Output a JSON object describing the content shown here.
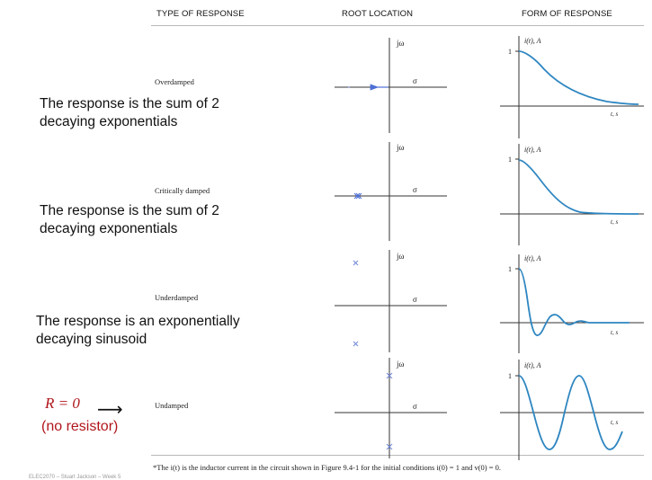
{
  "headers": {
    "type": "TYPE OF RESPONSE",
    "root": "ROOT LOCATION",
    "form": "FORM OF RESPONSE"
  },
  "axis_labels": {
    "imag": "jω",
    "real": "σ",
    "current": "i(t), A",
    "time": "t, s",
    "one": "1"
  },
  "rows": [
    {
      "type": "Overdamped",
      "caption_line1": "The response is the sum of 2",
      "caption_line2": "decaying exponentials",
      "root_markers": [
        "arrow-root",
        "faint-root"
      ],
      "response_shape": "slow-exponential-decay"
    },
    {
      "type": "Critically damped",
      "caption_line1": "The response is the sum of 2",
      "caption_line2": "decaying exponentials",
      "root_markers": [
        "double-root"
      ],
      "response_shape": "fast-exponential-decay"
    },
    {
      "type": "Underdamped",
      "caption_line1": "The response is an exponentially",
      "caption_line2": "decaying sinusoid",
      "root_markers": [
        "complex-pair-left-half-plane"
      ],
      "response_shape": "damped-oscillation"
    },
    {
      "type": "Undamped",
      "r_note": "R = 0",
      "r_note2": "(no resistor)",
      "root_markers": [
        "imaginary-axis-pair"
      ],
      "response_shape": "sustained-oscillation"
    }
  ],
  "footnote": "*The i(t) is the inductor current in the circuit shown in Figure 9.4-1 for the initial conditions i(0) = 1 and v(0) = 0.",
  "slide_footer": "ELEC2070 – Stuart Jackson – Week 5",
  "colors": {
    "curve": "#2e86c1",
    "marker": "#4d6fd6",
    "axis": "#333333",
    "red_note": "#b0161c"
  }
}
